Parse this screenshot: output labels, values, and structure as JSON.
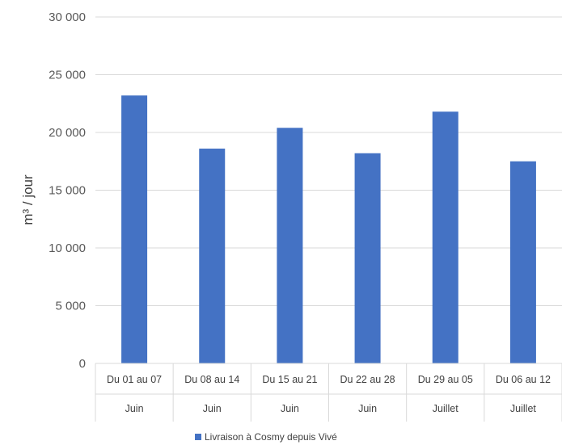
{
  "chart_data": {
    "type": "bar",
    "categories": [
      {
        "period": "Du 01 au 07",
        "month": "Juin"
      },
      {
        "period": "Du 08 au 14",
        "month": "Juin"
      },
      {
        "period": "Du 15 au 21",
        "month": "Juin"
      },
      {
        "period": "Du 22 au 28",
        "month": "Juin"
      },
      {
        "period": "Du 29 au 05",
        "month": "Juillet"
      },
      {
        "period": "Du 06 au 12",
        "month": "Juillet"
      }
    ],
    "series": [
      {
        "name": "Livraison à Cosmy depuis Vivé",
        "color": "#4472C4",
        "values": [
          23200,
          18600,
          20400,
          18200,
          21800,
          17500
        ]
      }
    ],
    "yticks": [
      "0",
      "5 000",
      "10 000",
      "15 000",
      "20 000",
      "25 000",
      "30 000"
    ],
    "ylim": [
      0,
      30000
    ],
    "ylabel": "m³ / jour",
    "xlabel": "",
    "grid": true,
    "legend_position": "bottom"
  }
}
